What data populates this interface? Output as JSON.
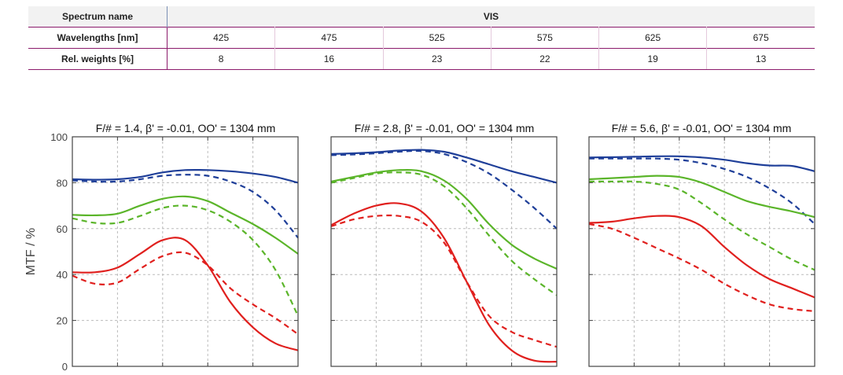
{
  "table": {
    "spectrum_label": "Spectrum name",
    "spectrum_value": "VIS",
    "wavelengths_label": "Wavelengths [nm]",
    "wavelengths": [
      "425",
      "475",
      "525",
      "575",
      "625",
      "675"
    ],
    "weights_label": "Rel. weights [%]",
    "weights": [
      "8",
      "16",
      "23",
      "22",
      "19",
      "13"
    ]
  },
  "colors": {
    "blue": "#1f3f99",
    "green": "#5bb52a",
    "red": "#e0201e",
    "grid": "#bbbbbb",
    "frame": "#444444",
    "table_accent": "#8b1a6b"
  },
  "chart_data": [
    {
      "type": "line",
      "title": "F/# = 1.4, β' = -0.01, OO' = 1304 mm",
      "ylabel": "MTF / %",
      "yticks": [
        "0",
        "20",
        "40",
        "60",
        "80",
        "100"
      ],
      "ylim": [
        0,
        100
      ],
      "xlim": [
        0,
        1
      ],
      "grid": true,
      "series": [
        {
          "color": "blue",
          "style": "solid",
          "points": [
            [
              0,
              81.5
            ],
            [
              0.1,
              81.3
            ],
            [
              0.2,
              81.5
            ],
            [
              0.3,
              82.5
            ],
            [
              0.4,
              84.5
            ],
            [
              0.5,
              85.5
            ],
            [
              0.6,
              85.5
            ],
            [
              0.7,
              85
            ],
            [
              0.8,
              84
            ],
            [
              0.9,
              82.5
            ],
            [
              1,
              80
            ]
          ]
        },
        {
          "color": "blue",
          "style": "dashed",
          "points": [
            [
              0,
              81
            ],
            [
              0.1,
              80.5
            ],
            [
              0.2,
              80.5
            ],
            [
              0.3,
              81.5
            ],
            [
              0.4,
              83
            ],
            [
              0.5,
              83.5
            ],
            [
              0.6,
              83
            ],
            [
              0.7,
              80.5
            ],
            [
              0.8,
              76
            ],
            [
              0.9,
              68
            ],
            [
              1,
              56
            ]
          ]
        },
        {
          "color": "green",
          "style": "solid",
          "points": [
            [
              0,
              66
            ],
            [
              0.1,
              65.8
            ],
            [
              0.2,
              66.5
            ],
            [
              0.3,
              70
            ],
            [
              0.4,
              73
            ],
            [
              0.5,
              74
            ],
            [
              0.6,
              72
            ],
            [
              0.7,
              67
            ],
            [
              0.8,
              62
            ],
            [
              0.9,
              56
            ],
            [
              1,
              49
            ]
          ]
        },
        {
          "color": "green",
          "style": "dashed",
          "points": [
            [
              0,
              64.5
            ],
            [
              0.1,
              62.5
            ],
            [
              0.2,
              62.5
            ],
            [
              0.3,
              65.5
            ],
            [
              0.4,
              69
            ],
            [
              0.5,
              70
            ],
            [
              0.6,
              68
            ],
            [
              0.7,
              63
            ],
            [
              0.8,
              55
            ],
            [
              0.9,
              42
            ],
            [
              1,
              22
            ]
          ]
        },
        {
          "color": "red",
          "style": "solid",
          "points": [
            [
              0,
              41
            ],
            [
              0.1,
              41
            ],
            [
              0.2,
              43
            ],
            [
              0.3,
              49
            ],
            [
              0.4,
              55
            ],
            [
              0.5,
              55
            ],
            [
              0.6,
              44
            ],
            [
              0.7,
              28
            ],
            [
              0.8,
              17
            ],
            [
              0.9,
              10
            ],
            [
              1,
              7
            ]
          ]
        },
        {
          "color": "red",
          "style": "dashed",
          "points": [
            [
              0,
              39.5
            ],
            [
              0.1,
              36
            ],
            [
              0.2,
              36.5
            ],
            [
              0.3,
              42.5
            ],
            [
              0.4,
              48
            ],
            [
              0.5,
              49.5
            ],
            [
              0.6,
              44
            ],
            [
              0.7,
              34
            ],
            [
              0.8,
              27
            ],
            [
              0.9,
              21
            ],
            [
              1,
              14
            ]
          ]
        }
      ]
    },
    {
      "type": "line",
      "title": "F/# = 2.8, β' = -0.01, OO' = 1304 mm",
      "ylabel": "",
      "ylim": [
        0,
        100
      ],
      "xlim": [
        0,
        1
      ],
      "grid": true,
      "series": [
        {
          "color": "blue",
          "style": "solid",
          "points": [
            [
              0,
              92.5
            ],
            [
              0.1,
              92.8
            ],
            [
              0.2,
              93.3
            ],
            [
              0.3,
              94
            ],
            [
              0.4,
              94.3
            ],
            [
              0.5,
              93.5
            ],
            [
              0.6,
              91
            ],
            [
              0.7,
              88
            ],
            [
              0.8,
              85
            ],
            [
              0.9,
              82.5
            ],
            [
              1,
              80
            ]
          ]
        },
        {
          "color": "blue",
          "style": "dashed",
          "points": [
            [
              0,
              92
            ],
            [
              0.1,
              92.3
            ],
            [
              0.2,
              92.8
            ],
            [
              0.3,
              93.5
            ],
            [
              0.4,
              93.8
            ],
            [
              0.5,
              92.5
            ],
            [
              0.6,
              89
            ],
            [
              0.7,
              84
            ],
            [
              0.8,
              77
            ],
            [
              0.9,
              69
            ],
            [
              1,
              60
            ]
          ]
        },
        {
          "color": "green",
          "style": "solid",
          "points": [
            [
              0,
              80.5
            ],
            [
              0.1,
              82.5
            ],
            [
              0.2,
              84.5
            ],
            [
              0.3,
              85.5
            ],
            [
              0.4,
              85
            ],
            [
              0.5,
              81
            ],
            [
              0.6,
              73
            ],
            [
              0.7,
              62
            ],
            [
              0.8,
              53
            ],
            [
              0.9,
              47
            ],
            [
              1,
              42.5
            ]
          ]
        },
        {
          "color": "green",
          "style": "dashed",
          "points": [
            [
              0,
              80
            ],
            [
              0.1,
              82
            ],
            [
              0.2,
              84
            ],
            [
              0.3,
              84.5
            ],
            [
              0.4,
              83.5
            ],
            [
              0.5,
              78.5
            ],
            [
              0.6,
              69
            ],
            [
              0.7,
              57
            ],
            [
              0.8,
              46
            ],
            [
              0.9,
              38
            ],
            [
              1,
              31
            ]
          ]
        },
        {
          "color": "red",
          "style": "solid",
          "points": [
            [
              0,
              61.5
            ],
            [
              0.1,
              66.5
            ],
            [
              0.2,
              70
            ],
            [
              0.3,
              71
            ],
            [
              0.4,
              67.5
            ],
            [
              0.5,
              56
            ],
            [
              0.6,
              37
            ],
            [
              0.7,
              18
            ],
            [
              0.8,
              7
            ],
            [
              0.9,
              2.5
            ],
            [
              1,
              2
            ]
          ]
        },
        {
          "color": "red",
          "style": "dashed",
          "points": [
            [
              0,
              61
            ],
            [
              0.1,
              64
            ],
            [
              0.2,
              65.5
            ],
            [
              0.3,
              65.5
            ],
            [
              0.4,
              63
            ],
            [
              0.5,
              54
            ],
            [
              0.6,
              37
            ],
            [
              0.7,
              22
            ],
            [
              0.8,
              15
            ],
            [
              0.9,
              11.5
            ],
            [
              1,
              8.5
            ]
          ]
        }
      ]
    },
    {
      "type": "line",
      "title": "F/# = 5.6, β' = -0.01, OO' = 1304 mm",
      "ylabel": "",
      "ylim": [
        0,
        100
      ],
      "xlim": [
        0,
        1
      ],
      "grid": true,
      "series": [
        {
          "color": "blue",
          "style": "solid",
          "points": [
            [
              0,
              91
            ],
            [
              0.1,
              91.1
            ],
            [
              0.2,
              91.3
            ],
            [
              0.3,
              91.5
            ],
            [
              0.4,
              91.5
            ],
            [
              0.5,
              91
            ],
            [
              0.6,
              90
            ],
            [
              0.7,
              88.5
            ],
            [
              0.8,
              87.5
            ],
            [
              0.9,
              87.3
            ],
            [
              1,
              85
            ]
          ]
        },
        {
          "color": "blue",
          "style": "dashed",
          "points": [
            [
              0,
              90.5
            ],
            [
              0.1,
              90.5
            ],
            [
              0.2,
              90.5
            ],
            [
              0.3,
              90.5
            ],
            [
              0.4,
              90
            ],
            [
              0.5,
              88.5
            ],
            [
              0.6,
              86
            ],
            [
              0.7,
              82.5
            ],
            [
              0.8,
              77.5
            ],
            [
              0.9,
              71
            ],
            [
              1,
              62
            ]
          ]
        },
        {
          "color": "green",
          "style": "solid",
          "points": [
            [
              0,
              81.5
            ],
            [
              0.1,
              82
            ],
            [
              0.2,
              82.5
            ],
            [
              0.3,
              83
            ],
            [
              0.4,
              82.5
            ],
            [
              0.5,
              80
            ],
            [
              0.6,
              76
            ],
            [
              0.7,
              72
            ],
            [
              0.8,
              69.5
            ],
            [
              0.9,
              67.5
            ],
            [
              1,
              65
            ]
          ]
        },
        {
          "color": "green",
          "style": "dashed",
          "points": [
            [
              0,
              80.5
            ],
            [
              0.1,
              80.5
            ],
            [
              0.2,
              80.5
            ],
            [
              0.3,
              79.5
            ],
            [
              0.4,
              77
            ],
            [
              0.5,
              71
            ],
            [
              0.6,
              64
            ],
            [
              0.7,
              57.5
            ],
            [
              0.8,
              52
            ],
            [
              0.9,
              46.5
            ],
            [
              1,
              42
            ]
          ]
        },
        {
          "color": "red",
          "style": "solid",
          "points": [
            [
              0,
              62.5
            ],
            [
              0.1,
              63
            ],
            [
              0.2,
              64.5
            ],
            [
              0.3,
              65.5
            ],
            [
              0.4,
              65
            ],
            [
              0.5,
              61
            ],
            [
              0.6,
              52
            ],
            [
              0.7,
              44
            ],
            [
              0.8,
              38
            ],
            [
              0.9,
              34
            ],
            [
              1,
              30
            ]
          ]
        },
        {
          "color": "red",
          "style": "dashed",
          "points": [
            [
              0,
              62
            ],
            [
              0.1,
              60
            ],
            [
              0.2,
              56
            ],
            [
              0.3,
              51.5
            ],
            [
              0.4,
              47
            ],
            [
              0.5,
              42
            ],
            [
              0.6,
              36
            ],
            [
              0.7,
              31
            ],
            [
              0.8,
              27
            ],
            [
              0.9,
              25
            ],
            [
              1,
              24
            ]
          ]
        }
      ]
    }
  ]
}
